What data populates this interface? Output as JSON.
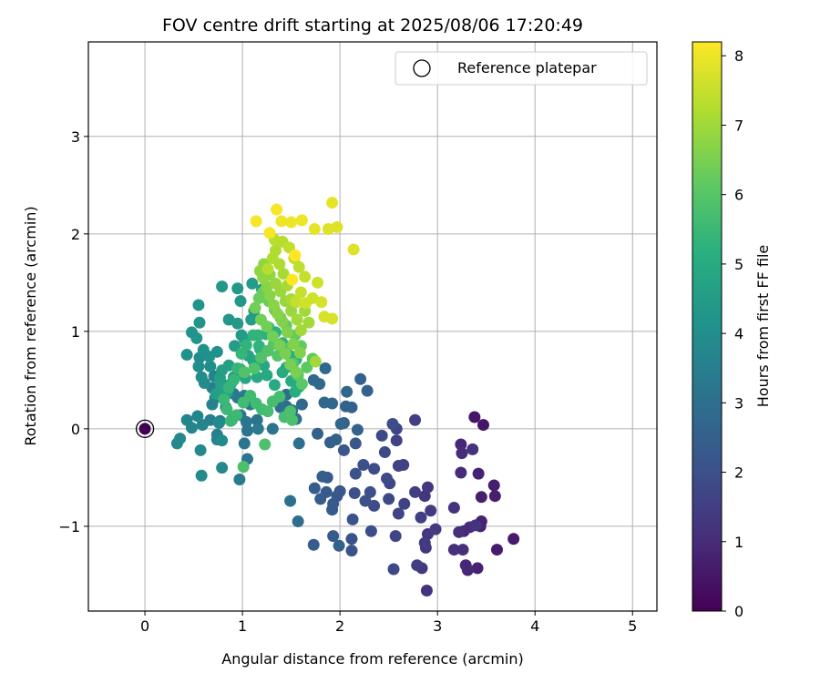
{
  "chart_data": {
    "type": "scatter",
    "title": "FOV centre drift starting at 2025/08/06 17:20:49",
    "xlabel": "Angular distance from reference (arcmin)",
    "ylabel": "Rotation from reference (arcmin)",
    "xlim": [
      -0.58,
      5.25
    ],
    "ylim": [
      -1.87,
      3.97
    ],
    "xticks": [
      0,
      1,
      2,
      3,
      4,
      5
    ],
    "yticks": [
      -1,
      0,
      1,
      2,
      3
    ],
    "grid": true,
    "legend": {
      "placement": "top-right",
      "entries": [
        {
          "label": "Reference platepar",
          "marker": "open-circle"
        }
      ]
    },
    "colorbar": {
      "label": "Hours from first FF file",
      "range": [
        0,
        8.2
      ],
      "ticks": [
        0,
        1,
        2,
        3,
        4,
        5,
        6,
        7,
        8
      ],
      "colormap": "viridis"
    },
    "reference_point": {
      "x": 0,
      "y": 0,
      "c": 0
    },
    "points": [
      [
        3.38,
        0.12,
        0.5
      ],
      [
        3.47,
        0.04,
        0.5
      ],
      [
        3.78,
        -1.13,
        0.6
      ],
      [
        3.61,
        -1.24,
        0.6
      ],
      [
        3.58,
        -0.58,
        0.7
      ],
      [
        3.59,
        -0.69,
        0.7
      ],
      [
        3.45,
        -0.7,
        0.7
      ],
      [
        3.45,
        -0.95,
        0.8
      ],
      [
        3.42,
        -0.46,
        0.8
      ],
      [
        3.41,
        -1.43,
        0.8
      ],
      [
        3.44,
        -1.0,
        0.8
      ],
      [
        3.29,
        -1.4,
        0.9
      ],
      [
        3.27,
        -1.05,
        0.9
      ],
      [
        3.31,
        -1.45,
        0.9
      ],
      [
        3.24,
        -0.16,
        0.9
      ],
      [
        3.25,
        -0.25,
        1.0
      ],
      [
        3.24,
        -0.45,
        1.0
      ],
      [
        3.33,
        -1.01,
        1.0
      ],
      [
        3.22,
        -1.06,
        1.1
      ],
      [
        3.26,
        -1.24,
        1.1
      ],
      [
        3.17,
        -1.24,
        1.1
      ],
      [
        3.17,
        -0.81,
        1.2
      ],
      [
        3.36,
        -0.21,
        1.2
      ],
      [
        3.39,
        -0.99,
        1.2
      ],
      [
        2.89,
        -1.66,
        1.2
      ],
      [
        2.88,
        -1.22,
        1.3
      ],
      [
        2.84,
        -1.43,
        1.3
      ],
      [
        2.9,
        -1.08,
        1.3
      ],
      [
        2.9,
        -0.6,
        1.3
      ],
      [
        2.87,
        -0.69,
        1.3
      ],
      [
        2.87,
        -1.17,
        1.4
      ],
      [
        2.93,
        -0.84,
        1.4
      ],
      [
        2.98,
        -1.03,
        1.4
      ],
      [
        2.79,
        -1.4,
        1.5
      ],
      [
        2.83,
        -0.91,
        1.5
      ],
      [
        2.77,
        -0.65,
        1.5
      ],
      [
        2.77,
        0.09,
        1.5
      ],
      [
        2.66,
        -0.77,
        1.6
      ],
      [
        2.65,
        -0.37,
        1.6
      ],
      [
        2.6,
        -0.38,
        1.6
      ],
      [
        2.58,
        -0.12,
        1.6
      ],
      [
        2.6,
        -0.87,
        1.7
      ],
      [
        2.57,
        -1.1,
        1.7
      ],
      [
        2.58,
        0.0,
        1.7
      ],
      [
        2.51,
        -0.56,
        1.7
      ],
      [
        2.5,
        -0.72,
        1.8
      ],
      [
        2.46,
        -0.24,
        1.8
      ],
      [
        2.48,
        -0.51,
        1.8
      ],
      [
        2.43,
        -0.07,
        1.8
      ],
      [
        2.55,
        -1.44,
        1.8
      ],
      [
        2.54,
        0.05,
        1.9
      ],
      [
        2.35,
        -0.79,
        1.9
      ],
      [
        2.32,
        -1.05,
        1.9
      ],
      [
        2.35,
        -0.41,
        1.9
      ],
      [
        2.31,
        -0.65,
        2.0
      ],
      [
        2.26,
        -0.74,
        2.0
      ],
      [
        2.24,
        -0.37,
        2.0
      ],
      [
        2.15,
        -0.66,
        2.0
      ],
      [
        2.13,
        -0.93,
        2.1
      ],
      [
        2.12,
        -1.25,
        2.1
      ],
      [
        2.12,
        -1.13,
        2.1
      ],
      [
        2.16,
        -0.46,
        2.1
      ],
      [
        2.16,
        -0.15,
        2.2
      ],
      [
        2.04,
        -0.22,
        2.2
      ],
      [
        2.0,
        -0.64,
        2.2
      ],
      [
        1.97,
        -0.69,
        2.2
      ],
      [
        1.93,
        -0.77,
        2.3
      ],
      [
        1.92,
        -0.83,
        2.3
      ],
      [
        1.93,
        -1.1,
        2.3
      ],
      [
        1.86,
        -0.65,
        2.3
      ],
      [
        1.87,
        -0.5,
        2.3
      ],
      [
        1.82,
        -0.49,
        2.4
      ],
      [
        1.8,
        -0.72,
        2.4
      ],
      [
        1.74,
        -0.61,
        2.4
      ],
      [
        1.73,
        -1.19,
        2.4
      ],
      [
        1.77,
        -0.05,
        2.5
      ],
      [
        1.9,
        -0.14,
        2.5
      ],
      [
        1.99,
        -1.2,
        2.5
      ],
      [
        1.96,
        -0.11,
        2.5
      ],
      [
        2.04,
        0.06,
        2.5
      ],
      [
        2.06,
        0.23,
        2.6
      ],
      [
        2.18,
        -0.01,
        2.6
      ],
      [
        2.12,
        0.22,
        2.6
      ],
      [
        2.28,
        0.39,
        2.6
      ],
      [
        2.21,
        0.51,
        2.6
      ],
      [
        2.07,
        0.38,
        2.7
      ],
      [
        2.01,
        0.05,
        2.7
      ],
      [
        1.92,
        0.26,
        2.7
      ],
      [
        1.84,
        0.27,
        2.7
      ],
      [
        1.85,
        0.62,
        2.8
      ],
      [
        1.79,
        0.46,
        2.8
      ],
      [
        1.73,
        0.5,
        2.8
      ],
      [
        1.61,
        0.25,
        2.8
      ],
      [
        1.55,
        0.1,
        2.9
      ],
      [
        1.51,
        0.19,
        2.9
      ],
      [
        1.45,
        0.23,
        2.9
      ],
      [
        1.45,
        0.35,
        2.9
      ],
      [
        1.57,
        -0.95,
        2.9
      ],
      [
        1.49,
        -0.74,
        3.0
      ],
      [
        1.58,
        -0.15,
        3.0
      ],
      [
        1.4,
        0.24,
        3.0
      ],
      [
        1.39,
        0.22,
        3.0
      ],
      [
        1.31,
        0.0,
        3.1
      ],
      [
        1.15,
        0.09,
        3.1
      ],
      [
        1.05,
        -0.02,
        3.1
      ],
      [
        1.05,
        -0.31,
        3.1
      ],
      [
        1.04,
        0.07,
        3.2
      ],
      [
        0.98,
        0.14,
        3.2
      ],
      [
        1.02,
        -0.15,
        3.2
      ],
      [
        0.91,
        0.36,
        3.2
      ],
      [
        0.95,
        0.32,
        3.3
      ],
      [
        1.02,
        0.34,
        3.3
      ],
      [
        1.08,
        0.25,
        3.3
      ],
      [
        1.16,
        0.0,
        3.3
      ],
      [
        0.97,
        -0.52,
        3.4
      ],
      [
        0.89,
        0.09,
        3.4
      ],
      [
        0.83,
        0.22,
        3.4
      ],
      [
        0.77,
        0.08,
        3.4
      ],
      [
        0.74,
        -0.06,
        3.5
      ],
      [
        0.67,
        0.09,
        3.5
      ],
      [
        0.72,
        0.32,
        3.5
      ],
      [
        0.69,
        0.42,
        3.5
      ],
      [
        0.74,
        -0.11,
        3.6
      ],
      [
        0.78,
        0.47,
        3.6
      ],
      [
        0.71,
        0.54,
        3.6
      ],
      [
        0.69,
        0.25,
        3.6
      ],
      [
        0.59,
        0.04,
        3.7
      ],
      [
        0.54,
        0.13,
        3.7
      ],
      [
        0.48,
        0.01,
        3.7
      ],
      [
        0.43,
        0.09,
        3.7
      ],
      [
        0.36,
        -0.1,
        3.8
      ],
      [
        0.33,
        -0.15,
        3.8
      ],
      [
        0.57,
        -0.22,
        3.8
      ],
      [
        0.79,
        -0.4,
        3.8
      ],
      [
        0.79,
        -0.12,
        3.9
      ],
      [
        0.58,
        -0.48,
        3.9
      ],
      [
        0.76,
        0.06,
        3.9
      ],
      [
        0.61,
        0.47,
        3.9
      ],
      [
        0.58,
        0.53,
        4.0
      ],
      [
        0.67,
        0.64,
        4.0
      ],
      [
        0.55,
        0.64,
        4.0
      ],
      [
        0.56,
        0.73,
        4.0
      ],
      [
        0.6,
        0.81,
        4.1
      ],
      [
        0.43,
        0.76,
        4.1
      ],
      [
        0.66,
        0.74,
        4.1
      ],
      [
        0.74,
        0.79,
        4.1
      ],
      [
        0.53,
        0.93,
        4.2
      ],
      [
        0.48,
        0.99,
        4.2
      ],
      [
        0.56,
        1.09,
        4.2
      ],
      [
        0.55,
        1.27,
        4.2
      ],
      [
        0.79,
        1.46,
        4.3
      ],
      [
        0.95,
        1.44,
        4.3
      ],
      [
        0.98,
        1.31,
        4.3
      ],
      [
        0.86,
        1.12,
        4.3
      ],
      [
        0.95,
        1.08,
        4.4
      ],
      [
        0.99,
        0.96,
        4.4
      ],
      [
        1.12,
        1.21,
        4.4
      ],
      [
        1.2,
        1.43,
        4.4
      ],
      [
        1.1,
        1.49,
        4.5
      ],
      [
        1.09,
        1.12,
        4.5
      ],
      [
        1.02,
        0.92,
        4.5
      ],
      [
        0.92,
        0.85,
        4.5
      ],
      [
        0.86,
        0.65,
        4.6
      ],
      [
        0.79,
        0.6,
        4.6
      ],
      [
        0.77,
        0.52,
        4.6
      ],
      [
        0.73,
        0.36,
        4.6
      ],
      [
        0.78,
        0.45,
        4.7
      ],
      [
        0.84,
        0.37,
        4.7
      ],
      [
        0.88,
        0.46,
        4.7
      ],
      [
        0.91,
        0.53,
        4.7
      ],
      [
        0.98,
        0.61,
        4.8
      ],
      [
        1.03,
        0.52,
        4.8
      ],
      [
        1.06,
        0.75,
        4.8
      ],
      [
        1.11,
        0.7,
        4.8
      ],
      [
        1.18,
        0.82,
        4.9
      ],
      [
        1.22,
        0.65,
        4.9
      ],
      [
        1.15,
        0.53,
        4.9
      ],
      [
        1.25,
        0.55,
        4.9
      ],
      [
        1.33,
        0.45,
        5.0
      ],
      [
        1.41,
        0.58,
        5.0
      ],
      [
        1.45,
        0.63,
        5.0
      ],
      [
        1.5,
        0.49,
        5.0
      ],
      [
        1.54,
        0.38,
        5.1
      ],
      [
        1.58,
        0.43,
        5.1
      ],
      [
        1.55,
        0.71,
        5.1
      ],
      [
        1.49,
        0.75,
        5.1
      ],
      [
        1.41,
        0.88,
        5.2
      ],
      [
        1.34,
        0.99,
        5.2
      ],
      [
        1.27,
        1.04,
        5.2
      ],
      [
        1.24,
        0.97,
        5.2
      ],
      [
        1.17,
        0.85,
        5.3
      ],
      [
        1.16,
        0.96,
        5.3
      ],
      [
        1.11,
        0.96,
        5.3
      ],
      [
        1.04,
        0.86,
        5.3
      ],
      [
        0.99,
        0.77,
        5.4
      ],
      [
        0.95,
        0.62,
        5.4
      ],
      [
        0.91,
        0.5,
        5.4
      ],
      [
        0.86,
        0.42,
        5.4
      ],
      [
        0.81,
        0.3,
        5.5
      ],
      [
        0.84,
        0.2,
        5.5
      ],
      [
        0.88,
        0.08,
        5.5
      ],
      [
        0.94,
        0.14,
        5.5
      ],
      [
        1.01,
        0.27,
        5.6
      ],
      [
        1.08,
        0.34,
        5.6
      ],
      [
        1.14,
        0.26,
        5.6
      ],
      [
        1.2,
        0.2,
        5.6
      ],
      [
        1.26,
        0.18,
        5.7
      ],
      [
        1.31,
        0.28,
        5.7
      ],
      [
        1.38,
        0.33,
        5.7
      ],
      [
        1.43,
        0.12,
        5.7
      ],
      [
        1.49,
        0.18,
        5.8
      ],
      [
        1.51,
        0.09,
        5.8
      ],
      [
        1.23,
        -0.16,
        5.8
      ],
      [
        1.01,
        -0.39,
        5.8
      ],
      [
        1.02,
        0.58,
        5.9
      ],
      [
        1.12,
        0.62,
        5.9
      ],
      [
        1.19,
        0.73,
        5.9
      ],
      [
        1.26,
        0.8,
        5.9
      ],
      [
        1.32,
        0.87,
        6.0
      ],
      [
        1.36,
        0.75,
        6.0
      ],
      [
        1.44,
        0.82,
        6.0
      ],
      [
        1.52,
        0.67,
        6.0
      ],
      [
        1.57,
        0.55,
        6.1
      ],
      [
        1.61,
        0.46,
        6.1
      ],
      [
        1.66,
        0.63,
        6.1
      ],
      [
        1.72,
        0.72,
        6.1
      ],
      [
        1.6,
        0.85,
        6.2
      ],
      [
        1.54,
        0.96,
        6.2
      ],
      [
        1.45,
        1.06,
        6.2
      ],
      [
        1.39,
        1.14,
        6.2
      ],
      [
        1.33,
        1.22,
        6.3
      ],
      [
        1.27,
        1.31,
        6.3
      ],
      [
        1.21,
        1.4,
        6.3
      ],
      [
        1.17,
        1.34,
        6.3
      ],
      [
        1.13,
        1.24,
        6.4
      ],
      [
        1.19,
        1.12,
        6.4
      ],
      [
        1.25,
        1.05,
        6.4
      ],
      [
        1.31,
        0.95,
        6.4
      ],
      [
        1.38,
        0.86,
        6.5
      ],
      [
        1.44,
        0.77,
        6.5
      ],
      [
        1.49,
        0.66,
        6.5
      ],
      [
        1.55,
        0.58,
        6.5
      ],
      [
        1.59,
        0.78,
        6.6
      ],
      [
        1.52,
        0.87,
        6.6
      ],
      [
        1.46,
        0.99,
        6.6
      ],
      [
        1.41,
        1.1,
        6.6
      ],
      [
        1.36,
        1.18,
        6.7
      ],
      [
        1.32,
        1.27,
        6.7
      ],
      [
        1.28,
        1.37,
        6.7
      ],
      [
        1.25,
        1.46,
        6.7
      ],
      [
        1.21,
        1.55,
        6.8
      ],
      [
        1.18,
        1.62,
        6.8
      ],
      [
        1.22,
        1.69,
        6.8
      ],
      [
        1.28,
        1.58,
        6.8
      ],
      [
        1.34,
        1.49,
        6.9
      ],
      [
        1.39,
        1.41,
        6.9
      ],
      [
        1.44,
        1.31,
        6.9
      ],
      [
        1.5,
        1.21,
        6.9
      ],
      [
        1.56,
        1.12,
        7.0
      ],
      [
        1.6,
        1.01,
        7.0
      ],
      [
        1.64,
        1.21,
        7.0
      ],
      [
        1.68,
        1.09,
        7.0
      ],
      [
        1.75,
        0.69,
        7.0
      ],
      [
        1.5,
        1.33,
        7.1
      ],
      [
        1.46,
        1.47,
        7.1
      ],
      [
        1.42,
        1.59,
        7.1
      ],
      [
        1.38,
        1.69,
        7.2
      ],
      [
        1.34,
        1.83,
        7.2
      ],
      [
        1.31,
        1.75,
        7.2
      ],
      [
        1.26,
        1.64,
        7.3
      ],
      [
        1.33,
        1.94,
        7.3
      ],
      [
        1.41,
        1.92,
        7.3
      ],
      [
        1.48,
        1.86,
        7.4
      ],
      [
        1.53,
        1.75,
        7.4
      ],
      [
        1.58,
        1.66,
        7.4
      ],
      [
        1.64,
        1.56,
        7.5
      ],
      [
        1.6,
        1.4,
        7.5
      ],
      [
        1.55,
        1.3,
        7.5
      ],
      [
        1.65,
        1.29,
        7.6
      ],
      [
        1.72,
        1.34,
        7.6
      ],
      [
        1.77,
        1.5,
        7.6
      ],
      [
        1.81,
        1.3,
        7.7
      ],
      [
        1.84,
        1.15,
        7.7
      ],
      [
        1.92,
        1.13,
        7.7
      ],
      [
        1.88,
        2.05,
        7.8
      ],
      [
        1.97,
        2.07,
        7.8
      ],
      [
        2.14,
        1.84,
        7.8
      ],
      [
        1.74,
        2.05,
        7.9
      ],
      [
        1.92,
        2.32,
        7.9
      ],
      [
        1.61,
        2.14,
        8.0
      ],
      [
        1.5,
        2.12,
        8.0
      ],
      [
        1.4,
        2.13,
        8.0
      ],
      [
        1.35,
        2.25,
        8.1
      ],
      [
        1.28,
        2.01,
        8.1
      ],
      [
        1.14,
        2.13,
        8.1
      ],
      [
        1.54,
        1.78,
        8.2
      ],
      [
        1.51,
        1.53,
        8.2
      ]
    ]
  }
}
